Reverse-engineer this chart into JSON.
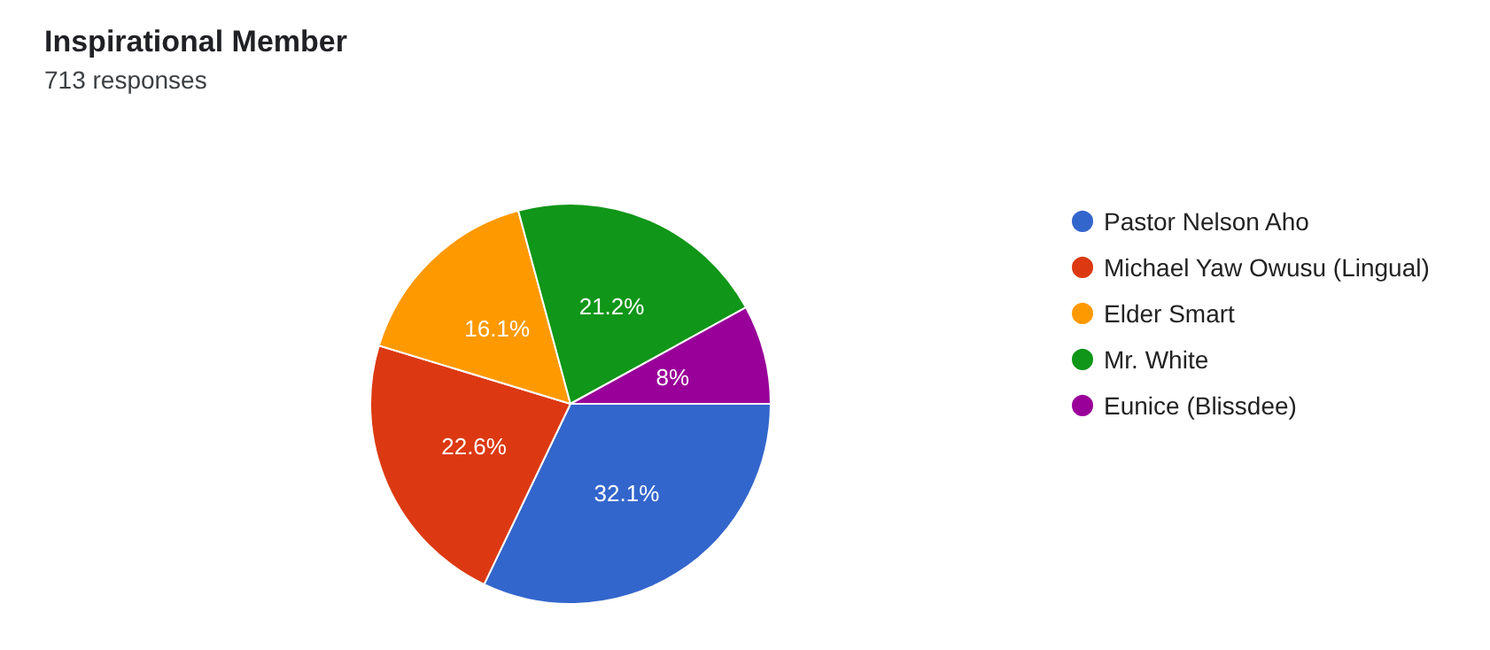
{
  "chart_data": {
    "type": "pie",
    "title": "Inspirational Member",
    "subtitle": "713 responses",
    "categories": [
      "Pastor Nelson Aho",
      "Michael Yaw Owusu (Lingual)",
      "Elder Smart",
      "Mr. White",
      "Eunice (Blissdee)"
    ],
    "values": [
      32.1,
      22.6,
      16.1,
      21.2,
      8
    ],
    "value_labels": [
      "32.1%",
      "22.6%",
      "16.1%",
      "21.2%",
      "8%"
    ],
    "colors": [
      "#3366cc",
      "#dc3912",
      "#ff9900",
      "#109618",
      "#990099"
    ],
    "legend": "right"
  }
}
